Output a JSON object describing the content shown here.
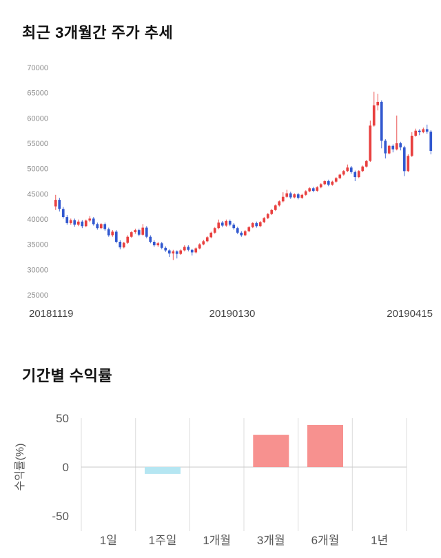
{
  "chart_data": [
    {
      "type": "candlestick",
      "title": "최근 3개월간 주가 추세",
      "ylim": [
        25000,
        70000
      ],
      "yticks": [
        70000,
        65000,
        60000,
        55000,
        50000,
        45000,
        40000,
        35000,
        30000,
        25000
      ],
      "xtick_labels": [
        "20181119",
        "20190130",
        "20190415"
      ],
      "up_color": "#e8403f",
      "down_color": "#3158cf",
      "candles_format": [
        "open",
        "high",
        "low",
        "close"
      ],
      "candles": [
        [
          42500,
          44800,
          41800,
          43800
        ],
        [
          43800,
          44200,
          41500,
          42000
        ],
        [
          42000,
          42400,
          40100,
          40400
        ],
        [
          40400,
          40800,
          38900,
          39200
        ],
        [
          39200,
          40100,
          38900,
          39800
        ],
        [
          39800,
          40100,
          38500,
          38900
        ],
        [
          38900,
          39900,
          38600,
          39500
        ],
        [
          39500,
          39800,
          38200,
          38600
        ],
        [
          38600,
          39900,
          38400,
          39700
        ],
        [
          39700,
          40600,
          39400,
          40100
        ],
        [
          40100,
          40400,
          38700,
          39000
        ],
        [
          39000,
          39300,
          37900,
          38200
        ],
        [
          38200,
          39200,
          38000,
          39000
        ],
        [
          39000,
          39300,
          37700,
          38000
        ],
        [
          38000,
          38300,
          36500,
          36800
        ],
        [
          36800,
          37800,
          36500,
          37500
        ],
        [
          37500,
          37800,
          35200,
          35500
        ],
        [
          35500,
          35800,
          34000,
          34400
        ],
        [
          34400,
          35500,
          34200,
          35300
        ],
        [
          35300,
          36800,
          35100,
          36500
        ],
        [
          36500,
          37600,
          36300,
          37400
        ],
        [
          37400,
          38100,
          37100,
          37800
        ],
        [
          37800,
          38100,
          36600,
          36900
        ],
        [
          36900,
          39000,
          36700,
          38300
        ],
        [
          38300,
          38600,
          36200,
          36500
        ],
        [
          36500,
          36800,
          35200,
          35500
        ],
        [
          35500,
          35800,
          34500,
          34800
        ],
        [
          34800,
          35500,
          34500,
          35200
        ],
        [
          35200,
          35500,
          34000,
          34300
        ],
        [
          34300,
          34600,
          33500,
          33800
        ],
        [
          33800,
          34000,
          32500,
          33200
        ],
        [
          33200,
          33900,
          31900,
          33600
        ],
        [
          33600,
          33800,
          32200,
          33100
        ],
        [
          33100,
          34000,
          32900,
          33800
        ],
        [
          33800,
          34800,
          33600,
          34500
        ],
        [
          34500,
          34800,
          33600,
          33900
        ],
        [
          33900,
          34100,
          32800,
          33400
        ],
        [
          33400,
          34400,
          33200,
          34200
        ],
        [
          34200,
          35200,
          34000,
          35000
        ],
        [
          35000,
          35900,
          34800,
          35600
        ],
        [
          35600,
          36600,
          35400,
          36400
        ],
        [
          36400,
          37500,
          36200,
          37300
        ],
        [
          37300,
          38400,
          37100,
          38200
        ],
        [
          38200,
          39900,
          38000,
          39300
        ],
        [
          39300,
          39600,
          38400,
          38700
        ],
        [
          38700,
          39900,
          38500,
          39600
        ],
        [
          39600,
          39900,
          38600,
          38900
        ],
        [
          38900,
          39200,
          37900,
          38200
        ],
        [
          38200,
          38500,
          37000,
          37300
        ],
        [
          37300,
          37600,
          36500,
          36800
        ],
        [
          36800,
          37800,
          36600,
          37600
        ],
        [
          37600,
          38600,
          37400,
          38400
        ],
        [
          38400,
          39400,
          38200,
          39200
        ],
        [
          39200,
          39500,
          38300,
          38600
        ],
        [
          38600,
          39600,
          38400,
          39400
        ],
        [
          39400,
          40400,
          39200,
          40200
        ],
        [
          40200,
          41200,
          40000,
          41000
        ],
        [
          41000,
          42000,
          40800,
          41800
        ],
        [
          41800,
          42900,
          41600,
          42700
        ],
        [
          42700,
          43700,
          42500,
          43500
        ],
        [
          43500,
          45300,
          43300,
          44400
        ],
        [
          44400,
          45800,
          44200,
          45100
        ],
        [
          45100,
          45400,
          44000,
          44300
        ],
        [
          44300,
          45100,
          44100,
          44900
        ],
        [
          44900,
          45200,
          43900,
          44200
        ],
        [
          44200,
          45000,
          44000,
          44800
        ],
        [
          44800,
          45700,
          44600,
          45500
        ],
        [
          45500,
          46300,
          45300,
          46100
        ],
        [
          46100,
          46400,
          45300,
          45600
        ],
        [
          45600,
          46500,
          45400,
          46300
        ],
        [
          46300,
          47100,
          46100,
          46900
        ],
        [
          46900,
          47700,
          46700,
          47500
        ],
        [
          47500,
          47800,
          46500,
          46800
        ],
        [
          46800,
          47600,
          46600,
          47400
        ],
        [
          47400,
          48300,
          47200,
          48100
        ],
        [
          48100,
          49000,
          47900,
          48800
        ],
        [
          48800,
          49700,
          48600,
          49500
        ],
        [
          49500,
          50800,
          49300,
          50200
        ],
        [
          50200,
          50500,
          49000,
          49300
        ],
        [
          49300,
          49600,
          47500,
          48300
        ],
        [
          48300,
          49700,
          48100,
          49500
        ],
        [
          49500,
          50600,
          49300,
          50400
        ],
        [
          50400,
          51700,
          50200,
          51500
        ],
        [
          51500,
          59500,
          51300,
          58500
        ],
        [
          58500,
          65200,
          58300,
          62500
        ],
        [
          62500,
          64800,
          61500,
          63200
        ],
        [
          63200,
          63500,
          54000,
          55500
        ],
        [
          55500,
          55800,
          52000,
          53000
        ],
        [
          53000,
          54700,
          52800,
          54500
        ],
        [
          54500,
          54800,
          53200,
          53800
        ],
        [
          53800,
          60500,
          53600,
          55000
        ],
        [
          55000,
          55300,
          53600,
          54200
        ],
        [
          54200,
          54500,
          48500,
          49500
        ],
        [
          49500,
          52800,
          49300,
          52500
        ],
        [
          52500,
          57200,
          52300,
          56500
        ],
        [
          56500,
          57900,
          56300,
          57500
        ],
        [
          57500,
          57800,
          56600,
          57200
        ],
        [
          57200,
          58100,
          57000,
          57800
        ],
        [
          57800,
          58700,
          56900,
          57300
        ],
        [
          57300,
          57600,
          52800,
          53500
        ]
      ]
    },
    {
      "type": "bar",
      "title": "기간별 수익률",
      "categories": [
        "1일",
        "1주일",
        "1개월",
        "3개월",
        "6개월",
        "1년"
      ],
      "values": [
        0,
        -7,
        0,
        33,
        43,
        0
      ],
      "ylabel": "수익률(%)",
      "ylim": [
        -50,
        50
      ],
      "yticks": [
        50,
        0,
        -50
      ],
      "grid": true,
      "positive_color": "#f7918f",
      "negative_color": "#b5e6f2"
    }
  ]
}
